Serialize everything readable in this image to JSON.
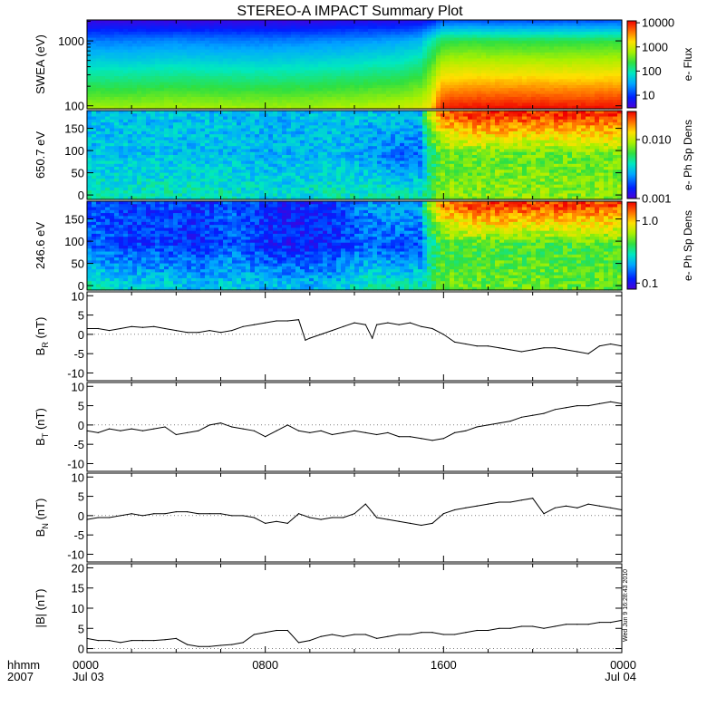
{
  "title": "STEREO-A IMPACT Summary Plot",
  "stamp": "Wed Jun  9 16:28:43 2010",
  "time_axis": {
    "corner_label_1": "hhmm",
    "corner_label_2": "2007",
    "ticks": [
      {
        "hours": 0,
        "time": "0000",
        "date": "Jul 03"
      },
      {
        "hours": 8,
        "time": "0800",
        "date": ""
      },
      {
        "hours": 16,
        "time": "1600",
        "date": ""
      },
      {
        "hours": 24,
        "time": "0000",
        "date": "Jul 04"
      }
    ],
    "range_hours": [
      0,
      24
    ]
  },
  "chart_data": [
    {
      "type": "heatmap",
      "name": "swea",
      "ylabel": "SWEA (eV)",
      "yscale": "log",
      "ylim": [
        90,
        2100
      ],
      "yticks": [
        {
          "v": 100,
          "label": "100"
        },
        {
          "v": 1000,
          "label": "1000"
        }
      ],
      "colorbar": {
        "label": "e- Flux",
        "scale": "log",
        "range": [
          3,
          12000
        ],
        "ticks": [
          {
            "v": 10,
            "label": "10"
          },
          {
            "v": 100,
            "label": "100"
          },
          {
            "v": 1000,
            "label": "1000"
          },
          {
            "v": 10000,
            "label": "10000"
          }
        ]
      },
      "time_hours": [
        0,
        2,
        4,
        6,
        8,
        10,
        12,
        14,
        15,
        15.5,
        16,
        17,
        18,
        20,
        22,
        24
      ],
      "flux_at_100eV": [
        500,
        500,
        550,
        520,
        500,
        520,
        600,
        700,
        900,
        1500,
        8000,
        9000,
        9500,
        9500,
        9000,
        9500
      ],
      "flux_at_1000eV": [
        20,
        20,
        22,
        20,
        20,
        22,
        25,
        30,
        40,
        100,
        200,
        220,
        200,
        200,
        200,
        210
      ],
      "flux_at_2000eV": [
        4,
        4,
        4,
        4,
        4,
        4,
        5,
        5,
        6,
        8,
        15,
        15,
        14,
        14,
        14,
        15
      ]
    },
    {
      "type": "heatmap",
      "name": "pad-650",
      "ylabel": "650.7 eV",
      "ylim": [
        -10,
        190
      ],
      "yticks": [
        {
          "v": 0,
          "label": "0"
        },
        {
          "v": 50,
          "label": "50"
        },
        {
          "v": 100,
          "label": "100"
        },
        {
          "v": 150,
          "label": "150"
        }
      ],
      "colorbar": {
        "label": "e- Ph Sp Dens",
        "scale": "log",
        "range": [
          0.001,
          0.03
        ],
        "ticks": [
          {
            "v": 0.001,
            "label": "0.001"
          },
          {
            "v": 0.01,
            "label": "0.010"
          }
        ]
      },
      "time_hours": [
        0,
        3,
        6,
        8,
        9,
        11,
        12.5,
        14,
        15,
        16,
        17,
        18,
        20,
        22,
        24
      ],
      "psd_low_angle": [
        0.004,
        0.004,
        0.004,
        0.0035,
        0.0035,
        0.004,
        0.004,
        0.004,
        0.004,
        0.008,
        0.008,
        0.008,
        0.008,
        0.008,
        0.008
      ],
      "psd_mid_angle": [
        0.003,
        0.003,
        0.003,
        0.0028,
        0.0028,
        0.003,
        0.0025,
        0.002,
        0.002,
        0.007,
        0.007,
        0.007,
        0.007,
        0.007,
        0.007
      ],
      "psd_high_angle": [
        0.003,
        0.003,
        0.003,
        0.0028,
        0.0028,
        0.003,
        0.003,
        0.003,
        0.003,
        0.02,
        0.025,
        0.025,
        0.025,
        0.025,
        0.025
      ]
    },
    {
      "type": "heatmap",
      "name": "pad-246",
      "ylabel": "246.6 eV",
      "ylim": [
        -10,
        190
      ],
      "yticks": [
        {
          "v": 0,
          "label": "0"
        },
        {
          "v": 50,
          "label": "50"
        },
        {
          "v": 100,
          "label": "100"
        },
        {
          "v": 150,
          "label": "150"
        }
      ],
      "colorbar": {
        "label": "e- Ph Sp Dens",
        "scale": "log",
        "range": [
          0.08,
          2.0
        ],
        "ticks": [
          {
            "v": 0.1,
            "label": "0.1"
          },
          {
            "v": 1.0,
            "label": "1.0"
          }
        ]
      },
      "time_hours": [
        0,
        2,
        4,
        5,
        6.5,
        8,
        9,
        11,
        12.5,
        14,
        15,
        16,
        17,
        18,
        20,
        22,
        24
      ],
      "psd_low_angle": [
        0.3,
        0.25,
        0.25,
        0.2,
        0.25,
        0.22,
        0.22,
        0.22,
        0.3,
        0.3,
        0.3,
        0.5,
        0.5,
        0.5,
        0.5,
        0.5,
        0.5
      ],
      "psd_mid_angle": [
        0.15,
        0.13,
        0.13,
        0.12,
        0.15,
        0.12,
        0.11,
        0.12,
        0.15,
        0.14,
        0.14,
        0.45,
        0.45,
        0.45,
        0.45,
        0.45,
        0.45
      ],
      "psd_high_angle": [
        0.15,
        0.13,
        0.13,
        0.12,
        0.15,
        0.12,
        0.11,
        0.12,
        0.18,
        0.2,
        0.2,
        1.2,
        1.6,
        1.6,
        1.6,
        1.6,
        1.5
      ]
    },
    {
      "type": "line",
      "name": "br",
      "ylabel": "B",
      "ylabel_sub": "R",
      "ylabel_unit": "(nT)",
      "ylim": [
        -12,
        11
      ],
      "yticks": [
        {
          "v": -10,
          "label": "-10"
        },
        {
          "v": -5,
          "label": "-5"
        },
        {
          "v": 0,
          "label": "0"
        },
        {
          "v": 5,
          "label": "5"
        },
        {
          "v": 10,
          "label": "10"
        }
      ],
      "x": [
        0,
        0.5,
        1,
        1.5,
        2,
        2.5,
        3,
        3.5,
        4,
        4.5,
        5,
        5.5,
        6,
        6.5,
        7,
        7.5,
        8,
        8.5,
        9,
        9.5,
        9.8,
        10,
        10.5,
        11,
        11.5,
        12,
        12.5,
        12.8,
        13,
        13.5,
        14,
        14.5,
        15,
        15.5,
        16,
        16.5,
        17,
        17.5,
        18,
        18.5,
        19,
        19.5,
        20,
        20.5,
        21,
        21.5,
        22,
        22.5,
        23,
        23.5,
        24
      ],
      "y": [
        1.5,
        1.5,
        1.0,
        1.5,
        2.0,
        1.8,
        2.0,
        1.5,
        1.0,
        0.5,
        0.5,
        1.0,
        0.5,
        1.0,
        2.0,
        2.5,
        3.0,
        3.5,
        3.5,
        3.8,
        -1.5,
        -1.0,
        0.0,
        1.0,
        2.0,
        3.0,
        2.5,
        -1.0,
        2.5,
        3.0,
        2.5,
        3.0,
        2.0,
        1.5,
        0.0,
        -2.0,
        -2.5,
        -3.0,
        -3.0,
        -3.5,
        -4.0,
        -4.5,
        -4.0,
        -3.5,
        -3.5,
        -4.0,
        -4.5,
        -5.0,
        -3.0,
        -2.5,
        -3.0
      ]
    },
    {
      "type": "line",
      "name": "bt",
      "ylabel": "B",
      "ylabel_sub": "T",
      "ylabel_unit": "(nT)",
      "ylim": [
        -12,
        11
      ],
      "yticks": [
        {
          "v": -10,
          "label": "-10"
        },
        {
          "v": -5,
          "label": "-5"
        },
        {
          "v": 0,
          "label": "0"
        },
        {
          "v": 5,
          "label": "5"
        },
        {
          "v": 10,
          "label": "10"
        }
      ],
      "x": [
        0,
        0.5,
        1,
        1.5,
        2,
        2.5,
        3,
        3.5,
        4,
        4.5,
        5,
        5.5,
        6,
        6.5,
        7,
        7.5,
        8,
        8.5,
        9,
        9.5,
        10,
        10.5,
        11,
        11.5,
        12,
        12.5,
        13,
        13.5,
        14,
        14.5,
        15,
        15.5,
        16,
        16.5,
        17,
        17.5,
        18,
        18.5,
        19,
        19.5,
        20,
        20.5,
        21,
        21.5,
        22,
        22.5,
        23,
        23.5,
        24
      ],
      "y": [
        -1.5,
        -2.0,
        -1.0,
        -1.5,
        -1.0,
        -1.5,
        -1.0,
        -0.5,
        -2.5,
        -2.0,
        -1.5,
        0.0,
        0.5,
        -0.5,
        -1.0,
        -1.5,
        -3.0,
        -1.5,
        0.0,
        -1.5,
        -2.0,
        -1.5,
        -2.5,
        -2.0,
        -1.5,
        -2.0,
        -2.5,
        -2.0,
        -3.0,
        -3.0,
        -3.5,
        -4.0,
        -3.5,
        -2.0,
        -1.5,
        -0.5,
        0.0,
        0.5,
        1.0,
        2.0,
        2.5,
        3.0,
        4.0,
        4.5,
        5.0,
        5.0,
        5.5,
        6.0,
        5.5
      ]
    },
    {
      "type": "line",
      "name": "bn",
      "ylabel": "B",
      "ylabel_sub": "N",
      "ylabel_unit": "(nT)",
      "ylim": [
        -12,
        11
      ],
      "yticks": [
        {
          "v": -10,
          "label": "-10"
        },
        {
          "v": -5,
          "label": "-5"
        },
        {
          "v": 0,
          "label": "0"
        },
        {
          "v": 5,
          "label": "5"
        },
        {
          "v": 10,
          "label": "10"
        }
      ],
      "x": [
        0,
        0.5,
        1,
        1.5,
        2,
        2.5,
        3,
        3.5,
        4,
        4.5,
        5,
        5.5,
        6,
        6.5,
        7,
        7.5,
        8,
        8.5,
        9,
        9.5,
        10,
        10.5,
        11,
        11.5,
        12,
        12.5,
        13,
        13.5,
        14,
        14.5,
        15,
        15.5,
        16,
        16.5,
        17,
        17.5,
        18,
        18.5,
        19,
        19.5,
        20,
        20.5,
        21,
        21.5,
        22,
        22.5,
        23,
        23.5,
        24
      ],
      "y": [
        -1.0,
        -0.5,
        -0.5,
        0.0,
        0.5,
        0.0,
        0.5,
        0.5,
        1.0,
        1.0,
        0.5,
        0.5,
        0.5,
        0.0,
        0.0,
        -0.5,
        -2.0,
        -1.5,
        -2.0,
        0.5,
        -0.5,
        -1.0,
        -0.5,
        -0.5,
        0.5,
        3.0,
        -0.5,
        -1.0,
        -1.5,
        -2.0,
        -2.5,
        -2.0,
        0.5,
        1.5,
        2.0,
        2.5,
        3.0,
        3.5,
        3.5,
        4.0,
        4.5,
        0.5,
        2.0,
        2.5,
        2.0,
        3.0,
        2.5,
        2.0,
        1.5
      ]
    },
    {
      "type": "line",
      "name": "bmag",
      "ylabel": "|B|",
      "ylabel_unit": "(nT)",
      "ylim": [
        -1,
        21
      ],
      "yticks": [
        {
          "v": 0,
          "label": "0"
        },
        {
          "v": 5,
          "label": "5"
        },
        {
          "v": 10,
          "label": "10"
        },
        {
          "v": 15,
          "label": "15"
        },
        {
          "v": 20,
          "label": "20"
        }
      ],
      "x": [
        0,
        0.5,
        1,
        1.5,
        2,
        2.5,
        3,
        3.5,
        4,
        4.5,
        5,
        5.5,
        6,
        6.5,
        7,
        7.5,
        8,
        8.5,
        9,
        9.5,
        10,
        10.5,
        11,
        11.5,
        12,
        12.5,
        13,
        13.5,
        14,
        14.5,
        15,
        15.5,
        16,
        16.5,
        17,
        17.5,
        18,
        18.5,
        19,
        19.5,
        20,
        20.5,
        21,
        21.5,
        22,
        22.5,
        23,
        23.5,
        24
      ],
      "y": [
        2.5,
        2.0,
        2.0,
        1.5,
        2.0,
        2.0,
        2.0,
        2.2,
        2.5,
        1.0,
        0.5,
        0.5,
        0.8,
        1.0,
        1.5,
        3.5,
        4.0,
        4.5,
        4.5,
        1.5,
        2.0,
        3.0,
        3.5,
        3.0,
        3.5,
        3.5,
        2.5,
        3.0,
        3.5,
        3.5,
        4.0,
        4.0,
        3.5,
        3.5,
        4.0,
        4.5,
        4.5,
        5.0,
        5.0,
        5.5,
        5.5,
        5.0,
        5.5,
        6.0,
        6.0,
        6.0,
        6.5,
        6.5,
        7.0
      ]
    }
  ]
}
